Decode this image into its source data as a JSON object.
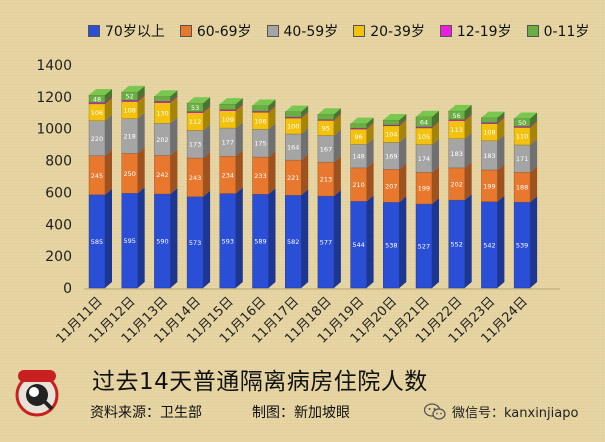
{
  "chart_data": {
    "type": "bar",
    "stacked": true,
    "categories": [
      "11月11日",
      "11月12日",
      "11月13日",
      "11月14日",
      "11月15日",
      "11月16日",
      "11月17日",
      "11月18日",
      "11月19日",
      "11月20日",
      "11月21日",
      "11月22日",
      "11月23日",
      "11月24日"
    ],
    "series": [
      {
        "name": "70岁以上",
        "color": "#2a4fd6",
        "values": [
          585,
          595,
          590,
          573,
          593,
          589,
          582,
          577,
          544,
          538,
          527,
          552,
          542,
          539
        ]
      },
      {
        "name": "60-69岁",
        "color": "#e8782e",
        "values": [
          245,
          250,
          242,
          243,
          234,
          233,
          221,
          213,
          210,
          207,
          199,
          202,
          199,
          188
        ]
      },
      {
        "name": "40-59岁",
        "color": "#a5a5a5",
        "values": [
          220,
          218,
          202,
          173,
          177,
          175,
          164,
          167,
          148,
          169,
          174,
          183,
          183,
          171
        ]
      },
      {
        "name": "20-39岁",
        "color": "#f3c20e",
        "values": [
          106,
          108,
          130,
          112,
          109,
          106,
          100,
          95,
          96,
          104,
          105,
          113,
          108,
          110
        ]
      },
      {
        "name": "12-19岁",
        "color": "#e81fe0",
        "values": [
          8,
          8,
          8,
          6,
          6,
          6,
          6,
          5,
          5,
          5,
          6,
          6,
          6,
          6
        ]
      },
      {
        "name": "0-11岁",
        "color": "#6aad45",
        "values": [
          48,
          52,
          32,
          53,
          35,
          37,
          34,
          34,
          29,
          32,
          64,
          56,
          32,
          50
        ]
      }
    ],
    "data_labels": [
      [
        "585",
        "595",
        "590",
        "573",
        "593",
        "589",
        "582",
        "577",
        "544",
        "538",
        "527",
        "552",
        "542",
        "539"
      ],
      [
        "245",
        "250",
        "242",
        "243",
        "234",
        "233",
        "221",
        "213",
        "210",
        "207",
        "199",
        "202",
        "199",
        "188"
      ],
      [
        "220",
        "218",
        "202",
        "173",
        "177",
        "175",
        "164",
        "167",
        "148",
        "169",
        "174",
        "183",
        "183",
        "171"
      ],
      [
        "106",
        "108",
        "130",
        "112",
        "109",
        "106",
        "100",
        "95",
        "96",
        "104",
        "105",
        "113",
        "108",
        "110"
      ],
      [
        "",
        "",
        "",
        "",
        "",
        "",
        "",
        "",
        "",
        "",
        "",
        "",
        "",
        ""
      ],
      [
        "48",
        "52",
        "",
        "53",
        "",
        "37",
        "",
        "",
        "",
        "",
        "64",
        "56",
        "",
        "50"
      ]
    ],
    "ylim": [
      0,
      1400
    ],
    "yticks": [
      0,
      200,
      400,
      600,
      800,
      1000,
      1200,
      1400
    ],
    "grid": false,
    "legend_position": "top",
    "title": "过去14天普通隔离病房住院人数"
  },
  "footer": {
    "title": "过去14天普通隔离病房住院人数",
    "source": "资料来源：卫生部",
    "maker": "制图：新加坡眼",
    "logo_text": "新加坡眼",
    "wechat": "微信号：kanxinjiapo"
  }
}
